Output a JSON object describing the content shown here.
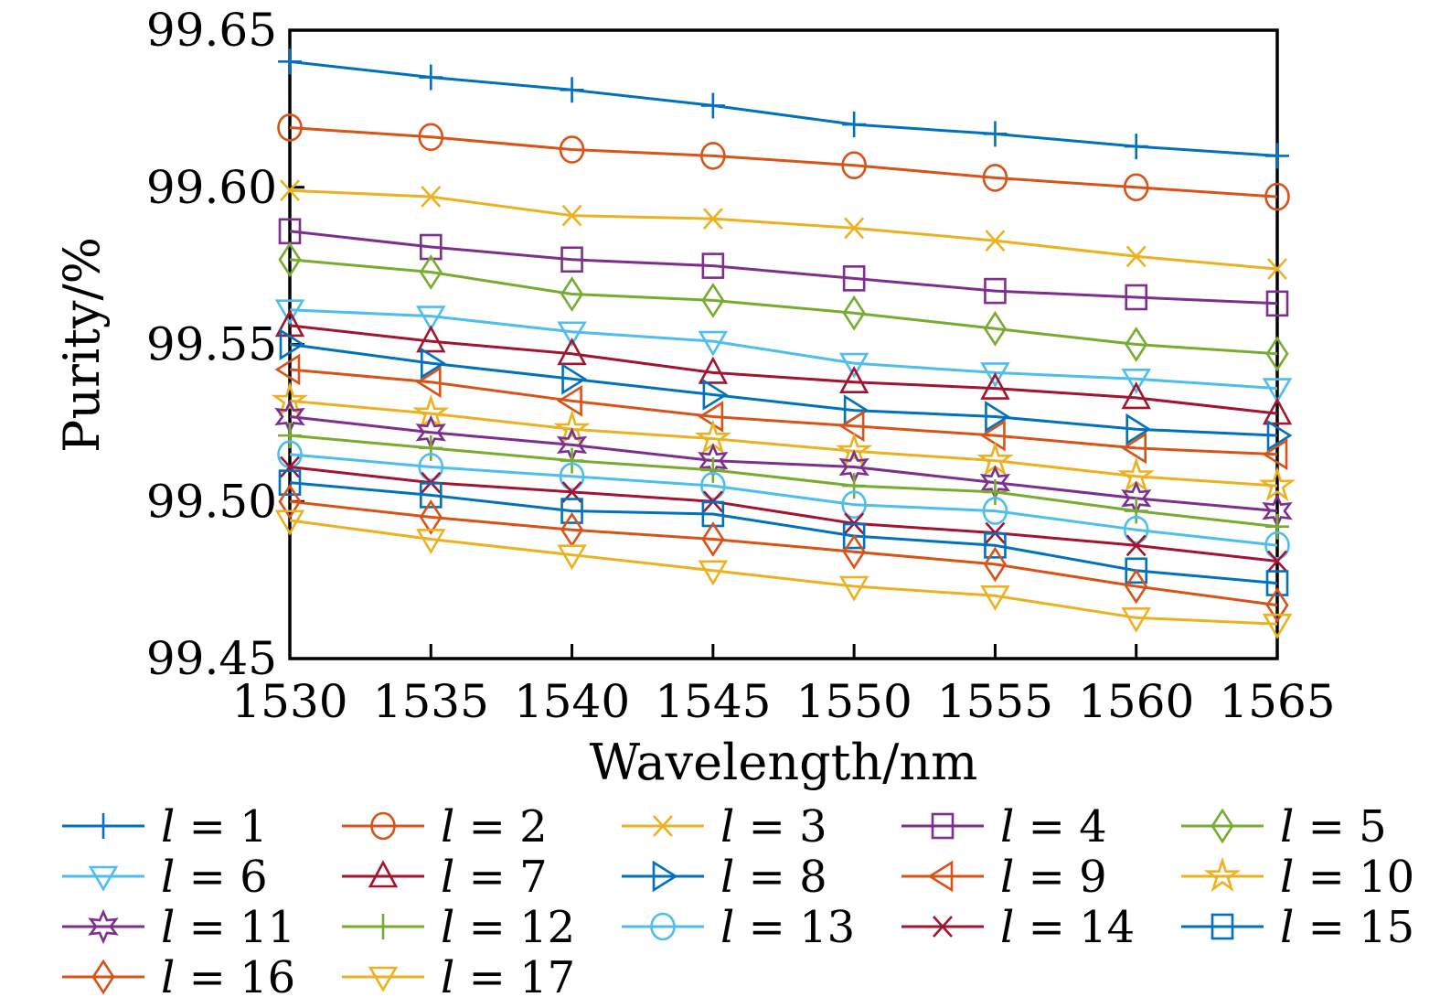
{
  "chart_data": {
    "type": "line",
    "title": "",
    "xlabel": "Wavelength/nm",
    "ylabel": "Purity/%",
    "xlim": [
      1530,
      1565
    ],
    "ylim": [
      99.45,
      99.65
    ],
    "grid": false,
    "legend_position": "below-plot, 5 columns",
    "x": [
      1530,
      1535,
      1540,
      1545,
      1550,
      1555,
      1560,
      1565
    ],
    "xtick_labels": [
      "1530",
      "1535",
      "1540",
      "1545",
      "1550",
      "1555",
      "1560",
      "1565"
    ],
    "yticks": [
      99.45,
      99.5,
      99.55,
      99.6,
      99.65
    ],
    "ytick_labels": [
      "99.45",
      "99.50",
      "99.55",
      "99.60",
      "99.65"
    ],
    "series": [
      {
        "label_var": "l",
        "label_value": "1",
        "color": "#0072BD",
        "marker": "plus",
        "values": [
          99.64,
          99.635,
          99.631,
          99.626,
          99.62,
          99.617,
          99.613,
          99.61
        ]
      },
      {
        "label_var": "l",
        "label_value": "2",
        "color": "#D95319",
        "marker": "circle",
        "values": [
          99.619,
          99.616,
          99.612,
          99.61,
          99.607,
          99.603,
          99.6,
          99.597
        ]
      },
      {
        "label_var": "l",
        "label_value": "3",
        "color": "#EDB120",
        "marker": "x",
        "values": [
          99.599,
          99.597,
          99.591,
          99.59,
          99.587,
          99.583,
          99.578,
          99.574
        ]
      },
      {
        "label_var": "l",
        "label_value": "4",
        "color": "#7E2F8E",
        "marker": "square",
        "values": [
          99.586,
          99.581,
          99.577,
          99.575,
          99.571,
          99.567,
          99.565,
          99.563
        ]
      },
      {
        "label_var": "l",
        "label_value": "5",
        "color": "#77AC30",
        "marker": "diamond",
        "values": [
          99.577,
          99.573,
          99.566,
          99.564,
          99.56,
          99.555,
          99.55,
          99.547
        ]
      },
      {
        "label_var": "l",
        "label_value": "6",
        "color": "#4DBEEE",
        "marker": "triangle-down",
        "values": [
          99.561,
          99.559,
          99.554,
          99.551,
          99.544,
          99.541,
          99.539,
          99.536
        ]
      },
      {
        "label_var": "l",
        "label_value": "7",
        "color": "#A2142F",
        "marker": "triangle-up",
        "values": [
          99.556,
          99.551,
          99.547,
          99.541,
          99.538,
          99.536,
          99.533,
          99.528
        ]
      },
      {
        "label_var": "l",
        "label_value": "8",
        "color": "#0072BD",
        "marker": "triangle-right",
        "values": [
          99.55,
          99.544,
          99.539,
          99.534,
          99.529,
          99.527,
          99.523,
          99.521
        ]
      },
      {
        "label_var": "l",
        "label_value": "9",
        "color": "#D95319",
        "marker": "triangle-left",
        "values": [
          99.542,
          99.538,
          99.532,
          99.527,
          99.524,
          99.521,
          99.517,
          99.515
        ]
      },
      {
        "label_var": "l",
        "label_value": "10",
        "color": "#EDB120",
        "marker": "pentagram",
        "values": [
          99.532,
          99.528,
          99.523,
          99.52,
          99.516,
          99.513,
          99.508,
          99.505
        ]
      },
      {
        "label_var": "l",
        "label_value": "11",
        "color": "#7E2F8E",
        "marker": "hexagram",
        "values": [
          99.527,
          99.522,
          99.518,
          99.513,
          99.511,
          99.506,
          99.501,
          99.497
        ]
      },
      {
        "label_var": "l",
        "label_value": "12",
        "color": "#77AC30",
        "marker": "plus",
        "values": [
          99.521,
          99.517,
          99.513,
          99.51,
          99.505,
          99.503,
          99.497,
          99.492
        ]
      },
      {
        "label_var": "l",
        "label_value": "13",
        "color": "#4DBEEE",
        "marker": "circle",
        "values": [
          99.515,
          99.511,
          99.508,
          99.505,
          99.499,
          99.497,
          99.491,
          99.486
        ]
      },
      {
        "label_var": "l",
        "label_value": "14",
        "color": "#A2142F",
        "marker": "x",
        "values": [
          99.511,
          99.506,
          99.503,
          99.5,
          99.493,
          99.49,
          99.486,
          99.481
        ]
      },
      {
        "label_var": "l",
        "label_value": "15",
        "color": "#0072BD",
        "marker": "square",
        "values": [
          99.506,
          99.502,
          99.497,
          99.496,
          99.489,
          99.486,
          99.478,
          99.474
        ]
      },
      {
        "label_var": "l",
        "label_value": "16",
        "color": "#D95319",
        "marker": "diamond",
        "values": [
          99.5,
          99.495,
          99.491,
          99.488,
          99.484,
          99.48,
          99.473,
          99.467
        ]
      },
      {
        "label_var": "l",
        "label_value": "17",
        "color": "#EDB120",
        "marker": "triangle-down",
        "values": [
          99.494,
          99.488,
          99.483,
          99.478,
          99.473,
          99.47,
          99.463,
          99.461
        ]
      }
    ]
  }
}
